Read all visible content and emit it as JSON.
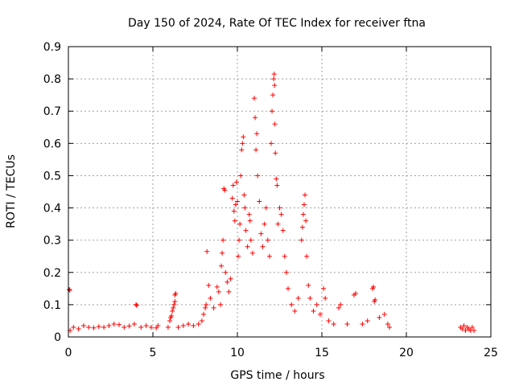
{
  "chart_data": {
    "type": "scatter",
    "title": "Day 150 of 2024, Rate Of TEC Index for receiver ftna",
    "xlabel": "GPS time / hours",
    "ylabel": "ROTI / TECUs",
    "xlim": [
      0,
      25
    ],
    "ylim": [
      0,
      0.9
    ],
    "x_ticks": [
      "0",
      "5",
      "10",
      "15",
      "20",
      "25"
    ],
    "y_ticks": [
      "0",
      "0.1",
      "0.2",
      "0.3",
      "0.4",
      "0.5",
      "0.6",
      "0.7",
      "0.8",
      "0.9"
    ],
    "grid": true,
    "marker": "plus",
    "series_color": "#ff0000",
    "series": [
      {
        "points": [
          [
            0.05,
            0.147
          ],
          [
            0.08,
            0.145
          ],
          [
            0.1,
            0.02
          ],
          [
            0.3,
            0.03
          ],
          [
            0.6,
            0.025
          ],
          [
            0.9,
            0.035
          ],
          [
            1.2,
            0.03
          ],
          [
            1.5,
            0.028
          ],
          [
            1.8,
            0.032
          ],
          [
            2.1,
            0.03
          ],
          [
            2.4,
            0.035
          ],
          [
            2.7,
            0.04
          ],
          [
            3.0,
            0.038
          ],
          [
            3.3,
            0.03
          ],
          [
            3.6,
            0.034
          ],
          [
            3.9,
            0.04
          ],
          [
            4.0,
            0.1
          ],
          [
            4.05,
            0.098
          ],
          [
            4.3,
            0.03
          ],
          [
            4.6,
            0.035
          ],
          [
            4.9,
            0.03
          ],
          [
            5.2,
            0.028
          ],
          [
            5.3,
            0.035
          ],
          [
            5.9,
            0.03
          ],
          [
            6.0,
            0.05
          ],
          [
            6.05,
            0.06
          ],
          [
            6.1,
            0.065
          ],
          [
            6.15,
            0.08
          ],
          [
            6.2,
            0.09
          ],
          [
            6.25,
            0.1
          ],
          [
            6.3,
            0.11
          ],
          [
            6.3,
            0.13
          ],
          [
            6.35,
            0.135
          ],
          [
            6.5,
            0.03
          ],
          [
            6.8,
            0.035
          ],
          [
            7.1,
            0.04
          ],
          [
            7.4,
            0.035
          ],
          [
            7.7,
            0.04
          ],
          [
            7.9,
            0.05
          ],
          [
            8.0,
            0.07
          ],
          [
            8.1,
            0.09
          ],
          [
            8.15,
            0.1
          ],
          [
            8.2,
            0.265
          ],
          [
            8.3,
            0.16
          ],
          [
            8.4,
            0.12
          ],
          [
            8.6,
            0.09
          ],
          [
            8.8,
            0.155
          ],
          [
            8.9,
            0.14
          ],
          [
            9.0,
            0.1
          ],
          [
            9.05,
            0.22
          ],
          [
            9.1,
            0.26
          ],
          [
            9.15,
            0.3
          ],
          [
            9.2,
            0.46
          ],
          [
            9.25,
            0.455
          ],
          [
            9.3,
            0.2
          ],
          [
            9.4,
            0.17
          ],
          [
            9.5,
            0.14
          ],
          [
            9.6,
            0.18
          ],
          [
            9.7,
            0.43
          ],
          [
            9.75,
            0.47
          ],
          [
            9.8,
            0.39
          ],
          [
            9.85,
            0.36
          ],
          [
            9.9,
            0.41
          ],
          [
            9.95,
            0.48
          ],
          [
            10.0,
            0.42
          ],
          [
            10.05,
            0.25
          ],
          [
            10.1,
            0.3
          ],
          [
            10.15,
            0.35
          ],
          [
            10.2,
            0.5
          ],
          [
            10.25,
            0.58
          ],
          [
            10.3,
            0.6
          ],
          [
            10.35,
            0.62
          ],
          [
            10.4,
            0.44
          ],
          [
            10.45,
            0.4
          ],
          [
            10.5,
            0.33
          ],
          [
            10.6,
            0.28
          ],
          [
            10.7,
            0.38
          ],
          [
            10.75,
            0.36
          ],
          [
            10.8,
            0.3
          ],
          [
            10.9,
            0.26
          ],
          [
            11.0,
            0.74
          ],
          [
            11.05,
            0.68
          ],
          [
            11.1,
            0.58
          ],
          [
            11.15,
            0.63
          ],
          [
            11.2,
            0.5
          ],
          [
            11.3,
            0.42
          ],
          [
            11.4,
            0.32
          ],
          [
            11.5,
            0.28
          ],
          [
            11.6,
            0.35
          ],
          [
            11.7,
            0.4
          ],
          [
            11.8,
            0.3
          ],
          [
            11.9,
            0.25
          ],
          [
            12.0,
            0.6
          ],
          [
            12.05,
            0.7
          ],
          [
            12.1,
            0.75
          ],
          [
            12.15,
            0.8
          ],
          [
            12.18,
            0.815
          ],
          [
            12.2,
            0.78
          ],
          [
            12.22,
            0.66
          ],
          [
            12.25,
            0.57
          ],
          [
            12.3,
            0.49
          ],
          [
            12.35,
            0.47
          ],
          [
            12.4,
            0.35
          ],
          [
            12.5,
            0.4
          ],
          [
            12.6,
            0.38
          ],
          [
            12.7,
            0.33
          ],
          [
            12.8,
            0.25
          ],
          [
            12.9,
            0.2
          ],
          [
            13.0,
            0.15
          ],
          [
            13.2,
            0.1
          ],
          [
            13.4,
            0.08
          ],
          [
            13.6,
            0.12
          ],
          [
            13.8,
            0.3
          ],
          [
            13.85,
            0.34
          ],
          [
            13.9,
            0.38
          ],
          [
            13.95,
            0.41
          ],
          [
            14.0,
            0.44
          ],
          [
            14.05,
            0.36
          ],
          [
            14.1,
            0.25
          ],
          [
            14.2,
            0.16
          ],
          [
            14.3,
            0.12
          ],
          [
            14.5,
            0.08
          ],
          [
            14.7,
            0.1
          ],
          [
            14.9,
            0.07
          ],
          [
            15.1,
            0.15
          ],
          [
            15.2,
            0.12
          ],
          [
            15.4,
            0.05
          ],
          [
            15.7,
            0.04
          ],
          [
            16.0,
            0.09
          ],
          [
            16.1,
            0.1
          ],
          [
            16.5,
            0.04
          ],
          [
            16.9,
            0.13
          ],
          [
            17.0,
            0.135
          ],
          [
            17.4,
            0.04
          ],
          [
            17.7,
            0.05
          ],
          [
            18.0,
            0.15
          ],
          [
            18.05,
            0.155
          ],
          [
            18.1,
            0.11
          ],
          [
            18.15,
            0.115
          ],
          [
            18.4,
            0.06
          ],
          [
            18.7,
            0.07
          ],
          [
            18.9,
            0.04
          ],
          [
            19.0,
            0.03
          ],
          [
            23.2,
            0.03
          ],
          [
            23.3,
            0.025
          ],
          [
            23.4,
            0.035
          ],
          [
            23.5,
            0.02
          ],
          [
            23.6,
            0.03
          ],
          [
            23.7,
            0.025
          ],
          [
            23.8,
            0.02
          ],
          [
            23.9,
            0.03
          ],
          [
            24.0,
            0.02
          ]
        ]
      }
    ]
  }
}
